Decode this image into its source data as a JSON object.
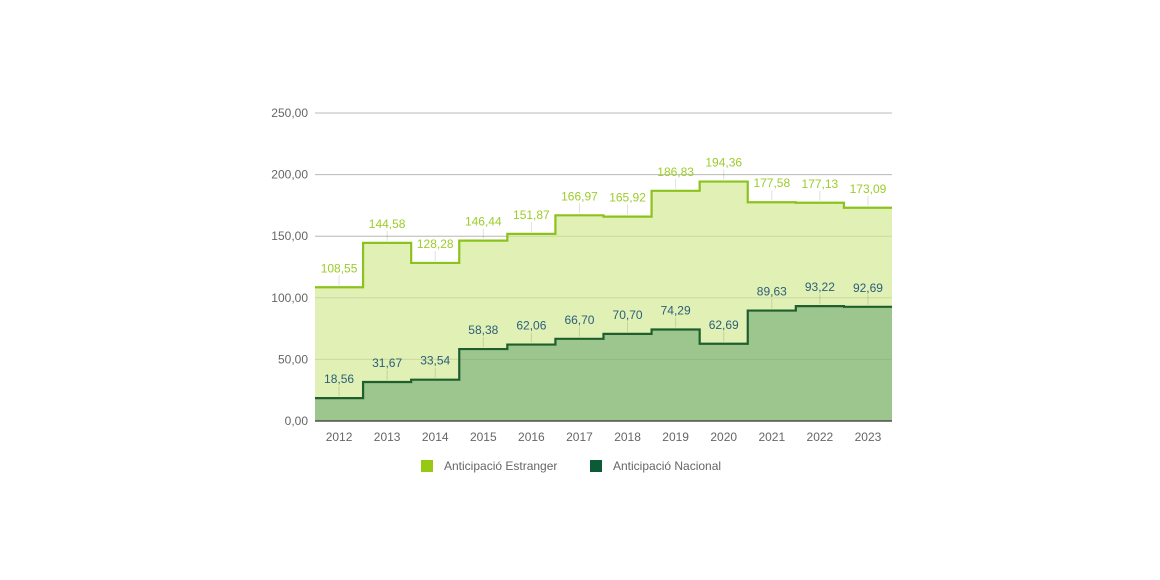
{
  "chart_data": {
    "type": "area",
    "style": "stepped",
    "categories": [
      "2012",
      "2013",
      "2014",
      "2015",
      "2016",
      "2017",
      "2018",
      "2019",
      "2020",
      "2021",
      "2022",
      "2023"
    ],
    "series": [
      {
        "name": "Anticipació Estranger",
        "values": [
          108.55,
          144.58,
          128.28,
          146.44,
          151.87,
          166.97,
          165.92,
          186.83,
          194.36,
          177.58,
          177.13,
          173.09
        ],
        "labels": [
          "108,55",
          "144,58",
          "128,28",
          "146,44",
          "151,87",
          "166,97",
          "165,92",
          "186,83",
          "194,36",
          "177,58",
          "177,13",
          "173,09"
        ],
        "line_color": "#8cc21d",
        "fill_color": "#e1f0b4",
        "label_color": "#9ccc2a",
        "legend_color": "#97c914"
      },
      {
        "name": "Anticipació Nacional",
        "values": [
          18.56,
          31.67,
          33.54,
          58.38,
          62.06,
          66.7,
          70.7,
          74.29,
          62.69,
          89.63,
          93.22,
          92.69
        ],
        "labels": [
          "18,56",
          "31,67",
          "33,54",
          "58,38",
          "62,06",
          "66,70",
          "70,70",
          "74,29",
          "62,69",
          "89,63",
          "93,22",
          "92,69"
        ],
        "line_color": "#1f5f2e",
        "fill_color": "#9dc68f",
        "label_color": "#2b5f7a",
        "legend_color": "#0c5b36"
      }
    ],
    "ylim": [
      0,
      250
    ],
    "yticks": [
      0,
      50,
      100,
      150,
      200,
      250
    ],
    "ytick_labels": [
      "0,00",
      "50,00",
      "100,00",
      "150,00",
      "200,00",
      "250,00"
    ],
    "grid": true,
    "legend_position": "bottom",
    "title": "",
    "xlabel": "",
    "ylabel": ""
  }
}
